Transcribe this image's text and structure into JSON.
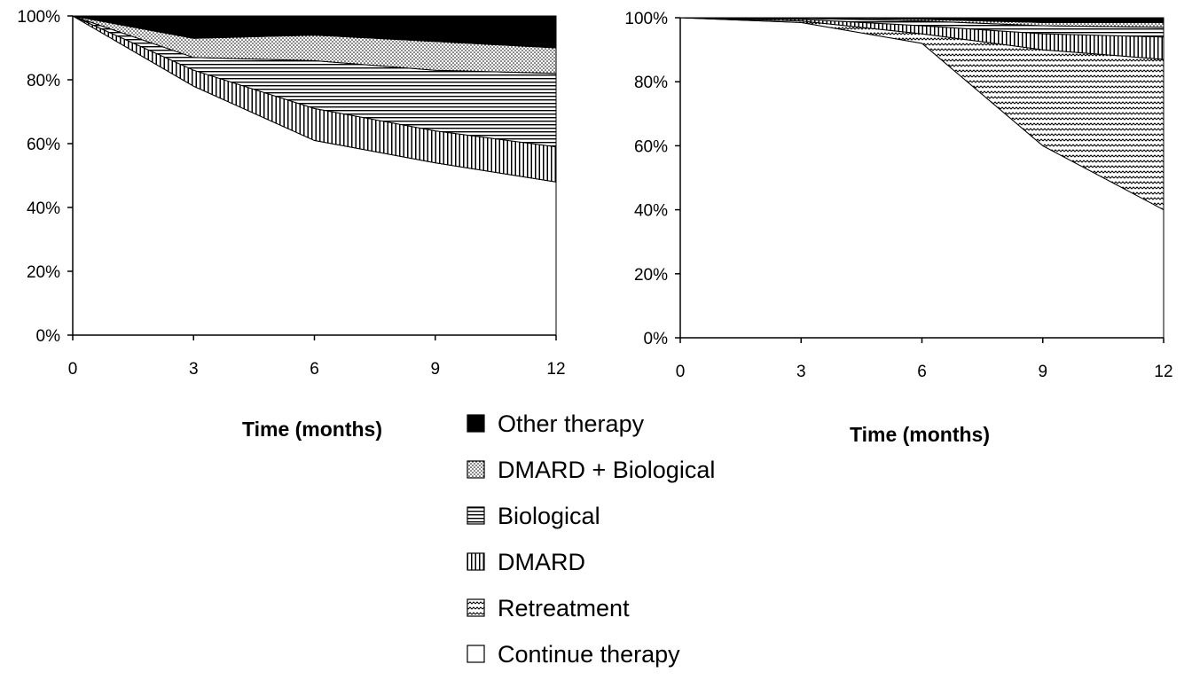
{
  "chart_data": [
    {
      "type": "area",
      "stacked": true,
      "xlabel": "Time (months)",
      "ylabel": "",
      "x": [
        0,
        3,
        6,
        9,
        12
      ],
      "xlim": [
        0,
        12
      ],
      "ylim": [
        0,
        100
      ],
      "yticks": [
        "0%",
        "20%",
        "40%",
        "60%",
        "80%",
        "100%"
      ],
      "series": [
        {
          "name": "Continue therapy",
          "values": [
            100,
            78,
            61,
            54,
            48
          ]
        },
        {
          "name": "Retreatment",
          "values": [
            0,
            0,
            0,
            0,
            0
          ]
        },
        {
          "name": "DMARD",
          "values": [
            0,
            5,
            10,
            10,
            11
          ]
        },
        {
          "name": "Biological",
          "values": [
            0,
            4,
            15,
            19,
            23
          ]
        },
        {
          "name": "DMARD + Biological",
          "values": [
            0,
            6,
            8,
            9,
            8
          ]
        },
        {
          "name": "Other therapy",
          "values": [
            0,
            7,
            6,
            8,
            10
          ]
        }
      ]
    },
    {
      "type": "area",
      "stacked": true,
      "xlabel": "Time (months)",
      "ylabel": "",
      "x": [
        0,
        3,
        6,
        9,
        12
      ],
      "xlim": [
        0,
        12
      ],
      "ylim": [
        0,
        100
      ],
      "yticks": [
        "0%",
        "20%",
        "40%",
        "60%",
        "80%",
        "100%"
      ],
      "series": [
        {
          "name": "Continue therapy",
          "values": [
            100,
            98.5,
            92,
            60,
            40
          ]
        },
        {
          "name": "Retreatment",
          "values": [
            0,
            0.5,
            3,
            30,
            47
          ]
        },
        {
          "name": "DMARD",
          "values": [
            0,
            0.5,
            2.5,
            5,
            7
          ]
        },
        {
          "name": "Biological",
          "values": [
            0,
            0.3,
            1.5,
            2.5,
            3
          ]
        },
        {
          "name": "DMARD + Biological",
          "values": [
            0,
            0.2,
            0.5,
            1,
            1.5
          ]
        },
        {
          "name": "Other therapy",
          "values": [
            0,
            0,
            0.5,
            1.5,
            1.5
          ]
        }
      ]
    }
  ],
  "legend": {
    "placement": "bottom-center",
    "items": [
      {
        "label": "Other therapy",
        "pattern": "solid"
      },
      {
        "label": "DMARD + Biological",
        "pattern": "dots"
      },
      {
        "label": "Biological",
        "pattern": "hlines"
      },
      {
        "label": "DMARD",
        "pattern": "vlines"
      },
      {
        "label": "Retreatment",
        "pattern": "waves"
      },
      {
        "label": "Continue therapy",
        "pattern": "none"
      }
    ]
  }
}
